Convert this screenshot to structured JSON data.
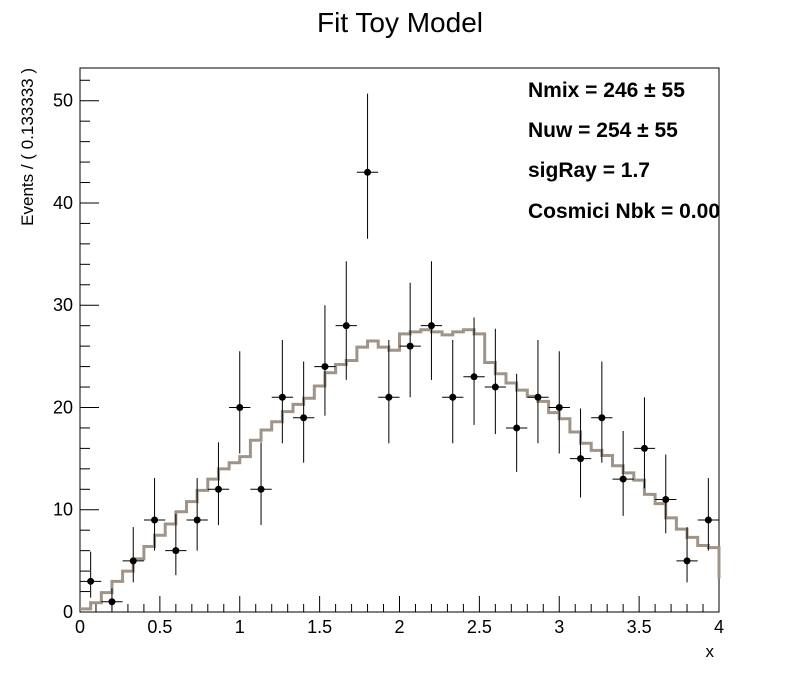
{
  "chart_data": {
    "type": "scatter",
    "title": "Fit Toy Model",
    "xlabel": "x",
    "ylabel": "Events / ( 0.133333 )",
    "xlim": [
      0,
      4
    ],
    "ylim": [
      0,
      53.2
    ],
    "grid": false,
    "x_ticks": [
      {
        "v": 0,
        "label": "0"
      },
      {
        "v": 0.5,
        "label": "0.5"
      },
      {
        "v": 1,
        "label": "1"
      },
      {
        "v": 1.5,
        "label": "1.5"
      },
      {
        "v": 2,
        "label": "2"
      },
      {
        "v": 2.5,
        "label": "2.5"
      },
      {
        "v": 3,
        "label": "3"
      },
      {
        "v": 3.5,
        "label": "3.5"
      },
      {
        "v": 4,
        "label": "4"
      }
    ],
    "y_ticks": [
      {
        "v": 0,
        "label": "0"
      },
      {
        "v": 10,
        "label": "10"
      },
      {
        "v": 20,
        "label": "20"
      },
      {
        "v": 30,
        "label": "30"
      },
      {
        "v": 40,
        "label": "40"
      },
      {
        "v": 50,
        "label": "50"
      }
    ],
    "bin_width": 0.133333,
    "data_points": [
      {
        "x": 0.0667,
        "y": 3,
        "ylo": 1.4,
        "yhi": 5.9
      },
      {
        "x": 0.2,
        "y": 1,
        "ylo": 0.2,
        "yhi": 2.3
      },
      {
        "x": 0.3333,
        "y": 5,
        "ylo": 2.9,
        "yhi": 8.3
      },
      {
        "x": 0.4667,
        "y": 9,
        "ylo": 6.0,
        "yhi": 13.1
      },
      {
        "x": 0.6,
        "y": 6,
        "ylo": 3.6,
        "yhi": 9.6
      },
      {
        "x": 0.7333,
        "y": 9,
        "ylo": 6.0,
        "yhi": 13.1
      },
      {
        "x": 0.8667,
        "y": 12,
        "ylo": 8.5,
        "yhi": 16.6
      },
      {
        "x": 1.0,
        "y": 20,
        "ylo": 15.5,
        "yhi": 25.5
      },
      {
        "x": 1.1333,
        "y": 12,
        "ylo": 8.5,
        "yhi": 16.6
      },
      {
        "x": 1.2667,
        "y": 21,
        "ylo": 16.5,
        "yhi": 26.6
      },
      {
        "x": 1.4,
        "y": 19,
        "ylo": 14.6,
        "yhi": 24.5
      },
      {
        "x": 1.5333,
        "y": 24,
        "ylo": 19.2,
        "yhi": 30.0
      },
      {
        "x": 1.6667,
        "y": 28,
        "ylo": 22.7,
        "yhi": 34.3
      },
      {
        "x": 1.8,
        "y": 43,
        "ylo": 36.5,
        "yhi": 50.7
      },
      {
        "x": 1.9333,
        "y": 21,
        "ylo": 16.5,
        "yhi": 26.6
      },
      {
        "x": 2.0667,
        "y": 26,
        "ylo": 21.0,
        "yhi": 32.2
      },
      {
        "x": 2.2,
        "y": 28,
        "ylo": 22.7,
        "yhi": 34.3
      },
      {
        "x": 2.3333,
        "y": 21,
        "ylo": 16.5,
        "yhi": 26.6
      },
      {
        "x": 2.4667,
        "y": 23,
        "ylo": 18.3,
        "yhi": 28.8
      },
      {
        "x": 2.6,
        "y": 22,
        "ylo": 17.4,
        "yhi": 27.7
      },
      {
        "x": 2.7333,
        "y": 18,
        "ylo": 13.7,
        "yhi": 23.3
      },
      {
        "x": 2.8667,
        "y": 21,
        "ylo": 16.5,
        "yhi": 26.6
      },
      {
        "x": 3.0,
        "y": 20,
        "ylo": 15.5,
        "yhi": 25.5
      },
      {
        "x": 3.1333,
        "y": 15,
        "ylo": 11.2,
        "yhi": 19.9
      },
      {
        "x": 3.2667,
        "y": 19,
        "ylo": 14.6,
        "yhi": 24.5
      },
      {
        "x": 3.4,
        "y": 13,
        "ylo": 9.4,
        "yhi": 17.7
      },
      {
        "x": 3.5333,
        "y": 16,
        "ylo": 12.1,
        "yhi": 21.0
      },
      {
        "x": 3.6667,
        "y": 11,
        "ylo": 7.7,
        "yhi": 15.4
      },
      {
        "x": 3.8,
        "y": 5,
        "ylo": 2.9,
        "yhi": 8.3
      },
      {
        "x": 3.9333,
        "y": 9,
        "ylo": 6.0,
        "yhi": 13.1
      }
    ],
    "fit_curve": {
      "color": "#a09488",
      "points": [
        [
          0,
          0.3
        ],
        [
          0.0667,
          0.9
        ],
        [
          0.1333,
          1.9
        ],
        [
          0.2,
          3.0
        ],
        [
          0.2667,
          4.0
        ],
        [
          0.3333,
          5.2
        ],
        [
          0.4,
          6.4
        ],
        [
          0.4667,
          7.5
        ],
        [
          0.5333,
          8.6
        ],
        [
          0.6,
          9.8
        ],
        [
          0.6667,
          10.8
        ],
        [
          0.7333,
          11.9
        ],
        [
          0.8,
          13.0
        ],
        [
          0.8667,
          14.0
        ],
        [
          0.9333,
          14.6
        ],
        [
          1.0,
          15.2
        ],
        [
          1.0667,
          16.8
        ],
        [
          1.1333,
          17.8
        ],
        [
          1.2,
          18.6
        ],
        [
          1.2667,
          19.6
        ],
        [
          1.3333,
          20.3
        ],
        [
          1.4,
          20.9
        ],
        [
          1.4667,
          22.1
        ],
        [
          1.5333,
          23.4
        ],
        [
          1.6,
          24.2
        ],
        [
          1.6667,
          24.6
        ],
        [
          1.7333,
          25.9
        ],
        [
          1.8,
          26.5
        ],
        [
          1.8667,
          25.9
        ],
        [
          1.9333,
          25.6
        ],
        [
          2.0,
          27.2
        ],
        [
          2.0667,
          27.4
        ],
        [
          2.1333,
          27.6
        ],
        [
          2.2,
          27.4
        ],
        [
          2.2667,
          27.1
        ],
        [
          2.3333,
          27.4
        ],
        [
          2.4,
          27.6
        ],
        [
          2.4667,
          27.2
        ],
        [
          2.5333,
          24.4
        ],
        [
          2.6,
          23.3
        ],
        [
          2.6667,
          22.4
        ],
        [
          2.7333,
          21.7
        ],
        [
          2.8,
          21.1
        ],
        [
          2.8667,
          20.6
        ],
        [
          2.9333,
          19.5
        ],
        [
          3.0,
          18.9
        ],
        [
          3.0667,
          17.6
        ],
        [
          3.1333,
          16.5
        ],
        [
          3.2,
          15.8
        ],
        [
          3.2667,
          15.3
        ],
        [
          3.3333,
          14.3
        ],
        [
          3.4,
          13.6
        ],
        [
          3.4667,
          12.9
        ],
        [
          3.5333,
          11.5
        ],
        [
          3.6,
          10.6
        ],
        [
          3.6667,
          9.2
        ],
        [
          3.7333,
          8.1
        ],
        [
          3.8,
          7.3
        ],
        [
          3.8667,
          6.5
        ],
        [
          3.9333,
          6.3
        ],
        [
          4.0,
          3.3
        ]
      ]
    },
    "stats": [
      "Nmix =  246 ± 55",
      "Nuw =  254 ± 55",
      "sigRay =  1.7",
      "Cosmici Nbk = 0.00"
    ]
  }
}
